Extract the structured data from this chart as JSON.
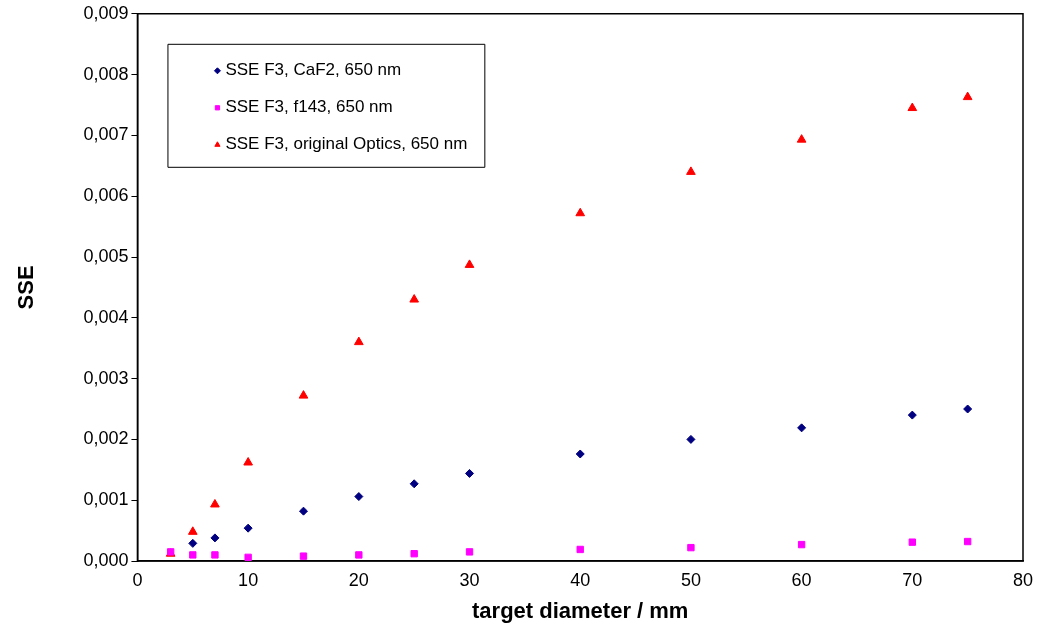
{
  "chart_data": {
    "type": "scatter",
    "xlabel": "target diameter / mm",
    "ylabel": "SSE",
    "x": [
      3,
      5,
      7,
      10,
      15,
      20,
      25,
      30,
      40,
      50,
      60,
      70,
      75
    ],
    "series": [
      {
        "name": "SSE F3, CaF2, 650 nm",
        "color": "#000080",
        "marker": "diamond",
        "values": [
          null,
          0.00029,
          0.00038,
          0.00054,
          0.00082,
          0.00106,
          0.00127,
          0.00144,
          0.00176,
          0.002,
          0.00219,
          0.0024,
          0.0025
        ]
      },
      {
        "name": "SSE F3, f143, 650 nm",
        "color": "#ff00ff",
        "marker": "square",
        "values": [
          0.00015,
          0.0001,
          0.0001,
          6e-05,
          8e-05,
          0.0001,
          0.00012,
          0.00015,
          0.00019,
          0.00022,
          0.00027,
          0.00031,
          0.00032
        ]
      },
      {
        "name": "SSE F3, original Optics, 650 nm",
        "color": "#ff0000",
        "marker": "triangle",
        "values": [
          0.00012,
          0.00048,
          0.00093,
          0.00162,
          0.00272,
          0.0036,
          0.0043,
          0.00487,
          0.00572,
          0.0064,
          0.00693,
          0.00745,
          0.00763
        ]
      }
    ],
    "xlim": [
      0,
      80
    ],
    "xticks": [
      0,
      10,
      20,
      30,
      40,
      50,
      60,
      70,
      80
    ],
    "ylim": [
      0,
      0.009
    ],
    "yticks": [
      {
        "value": 0,
        "label": "0,000"
      },
      {
        "value": 0.001,
        "label": "0,001"
      },
      {
        "value": 0.002,
        "label": "0,002"
      },
      {
        "value": 0.003,
        "label": "0,003"
      },
      {
        "value": 0.004,
        "label": "0,004"
      },
      {
        "value": 0.005,
        "label": "0,005"
      },
      {
        "value": 0.006,
        "label": "0,006"
      },
      {
        "value": 0.007,
        "label": "0,007"
      },
      {
        "value": 0.008,
        "label": "0,008"
      },
      {
        "value": 0.009,
        "label": "0,009"
      }
    ],
    "grid": false,
    "legend": "top left"
  }
}
